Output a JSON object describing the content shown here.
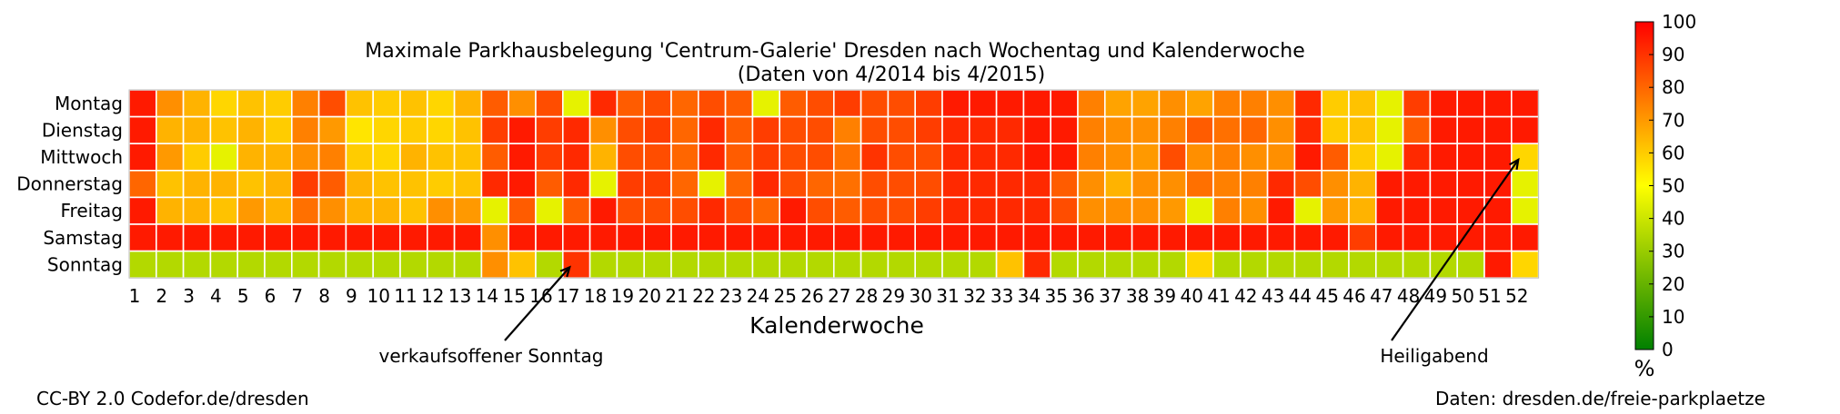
{
  "chart_data": {
    "type": "heatmap",
    "title": "Maximale Parkhausbelegung 'Centrum-Galerie' Dresden nach Wochentag und Kalenderwoche",
    "subtitle": "(Daten von 4/2014 bis 4/2015)",
    "xlabel": "Kalenderwoche",
    "ylabel": "",
    "rows": [
      "Montag",
      "Dienstag",
      "Mittwoch",
      "Donnerstag",
      "Freitag",
      "Samstag",
      "Sonntag"
    ],
    "columns": [
      "1",
      "2",
      "3",
      "4",
      "5",
      "6",
      "7",
      "8",
      "9",
      "10",
      "11",
      "12",
      "13",
      "14",
      "15",
      "16",
      "17",
      "18",
      "19",
      "20",
      "21",
      "22",
      "23",
      "24",
      "25",
      "26",
      "27",
      "28",
      "29",
      "30",
      "31",
      "32",
      "33",
      "34",
      "35",
      "36",
      "37",
      "38",
      "39",
      "40",
      "41",
      "42",
      "43",
      "44",
      "45",
      "46",
      "47",
      "48",
      "49",
      "50",
      "51",
      "52"
    ],
    "value_range": [
      0,
      100
    ],
    "colormap": [
      "#008000",
      "#ffff00",
      "#ff0000"
    ],
    "colorbar": {
      "ticks": [
        0,
        10,
        20,
        30,
        40,
        50,
        60,
        70,
        80,
        90,
        100
      ],
      "unit_label": "%"
    },
    "values": [
      [
        95,
        72,
        65,
        58,
        62,
        60,
        75,
        85,
        62,
        60,
        62,
        58,
        65,
        82,
        72,
        85,
        45,
        92,
        82,
        85,
        80,
        85,
        82,
        45,
        82,
        85,
        88,
        85,
        85,
        88,
        95,
        95,
        95,
        95,
        95,
        75,
        68,
        68,
        72,
        68,
        75,
        75,
        72,
        92,
        60,
        62,
        45,
        88,
        95,
        95,
        95,
        95
      ],
      [
        95,
        65,
        65,
        62,
        65,
        60,
        75,
        70,
        55,
        58,
        60,
        58,
        62,
        88,
        95,
        88,
        92,
        72,
        85,
        88,
        80,
        92,
        82,
        88,
        85,
        85,
        75,
        85,
        85,
        88,
        92,
        92,
        92,
        95,
        95,
        75,
        72,
        72,
        75,
        82,
        78,
        80,
        72,
        92,
        60,
        62,
        45,
        82,
        95,
        95,
        95,
        95
      ],
      [
        95,
        70,
        60,
        45,
        65,
        65,
        72,
        75,
        60,
        58,
        65,
        62,
        62,
        82,
        95,
        88,
        92,
        65,
        85,
        85,
        80,
        92,
        82,
        88,
        85,
        85,
        78,
        90,
        85,
        85,
        92,
        92,
        92,
        95,
        95,
        75,
        72,
        70,
        85,
        72,
        75,
        72,
        72,
        95,
        82,
        60,
        45,
        92,
        95,
        95,
        95,
        58
      ],
      [
        80,
        62,
        65,
        65,
        62,
        65,
        88,
        82,
        65,
        62,
        62,
        60,
        62,
        92,
        95,
        82,
        92,
        45,
        88,
        88,
        80,
        45,
        80,
        92,
        85,
        80,
        78,
        85,
        85,
        85,
        92,
        92,
        92,
        92,
        82,
        72,
        65,
        72,
        72,
        78,
        75,
        75,
        92,
        85,
        72,
        65,
        95,
        95,
        95,
        95,
        95,
        45
      ],
      [
        95,
        65,
        65,
        62,
        70,
        65,
        78,
        72,
        65,
        65,
        62,
        72,
        70,
        45,
        82,
        45,
        82,
        95,
        85,
        85,
        85,
        92,
        85,
        80,
        95,
        85,
        82,
        85,
        85,
        88,
        92,
        92,
        92,
        92,
        85,
        72,
        72,
        72,
        70,
        45,
        75,
        72,
        95,
        45,
        70,
        65,
        95,
        95,
        95,
        95,
        95,
        45
      ],
      [
        95,
        95,
        95,
        95,
        95,
        95,
        95,
        95,
        95,
        95,
        95,
        95,
        95,
        72,
        95,
        95,
        95,
        95,
        95,
        95,
        95,
        95,
        95,
        95,
        95,
        95,
        95,
        95,
        95,
        95,
        95,
        95,
        95,
        95,
        95,
        95,
        95,
        95,
        95,
        95,
        95,
        95,
        95,
        95,
        95,
        88,
        95,
        95,
        95,
        95,
        95,
        95
      ],
      [
        35,
        35,
        35,
        35,
        35,
        35,
        35,
        35,
        35,
        35,
        35,
        35,
        35,
        72,
        62,
        35,
        90,
        35,
        35,
        35,
        35,
        35,
        35,
        35,
        35,
        35,
        35,
        35,
        35,
        35,
        35,
        35,
        62,
        92,
        35,
        35,
        35,
        35,
        35,
        58,
        35,
        35,
        35,
        35,
        35,
        35,
        35,
        35,
        35,
        35,
        95,
        58
      ]
    ],
    "annotations": [
      {
        "text": "verkaufsoffener Sonntag",
        "week": 17,
        "day": "Sonntag"
      },
      {
        "text": "Heiligabend",
        "week": 52,
        "day": "Mittwoch"
      }
    ]
  },
  "footer": {
    "license": "CC-BY 2.0 Codefor.de/dresden",
    "source": "Daten: dresden.de/freie-parkplaetze"
  }
}
